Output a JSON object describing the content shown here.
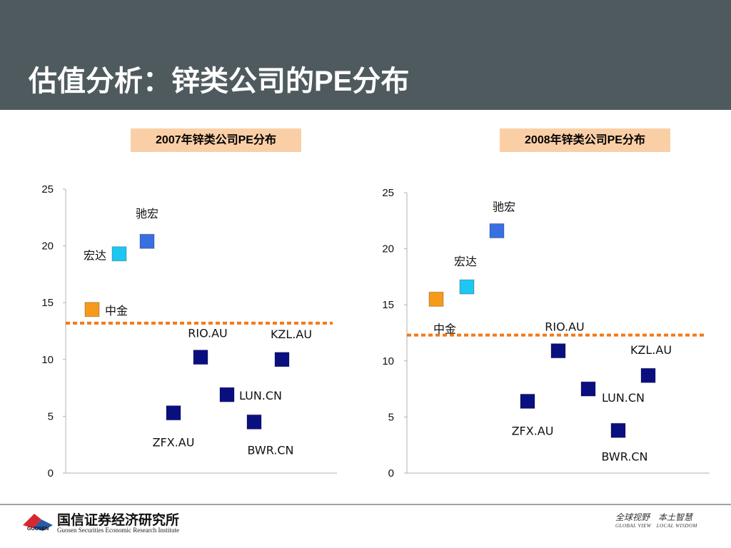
{
  "slide": {
    "title": "估值分析：锌类公司的PE分布"
  },
  "chart_data": [
    {
      "type": "scatter",
      "title": "2007年锌类公司PE分布",
      "xlabel": "",
      "ylabel": "",
      "ylim": [
        0,
        25
      ],
      "yticks": [
        0,
        5,
        10,
        15,
        20,
        25
      ],
      "reference_line": 13.2,
      "points": [
        {
          "label": "中金",
          "x": 1,
          "y": 14.4,
          "color": "#f59a1b"
        },
        {
          "label": "宏达",
          "x": 2,
          "y": 19.3,
          "color": "#1fc6f2"
        },
        {
          "label": "驰宏",
          "x": 3,
          "y": 20.4,
          "color": "#3a6fe0"
        },
        {
          "label": "ZFX.AU",
          "x": 4,
          "y": 5.3,
          "color": "#0a0f80"
        },
        {
          "label": "RIO.AU",
          "x": 5,
          "y": 10.2,
          "color": "#0a0f80"
        },
        {
          "label": "LUN.CN",
          "x": 6,
          "y": 6.9,
          "color": "#0a0f80"
        },
        {
          "label": "BWR.CN",
          "x": 7,
          "y": 4.5,
          "color": "#0a0f80"
        },
        {
          "label": "KZL.AU",
          "x": 8,
          "y": 10.0,
          "color": "#0a0f80"
        }
      ]
    },
    {
      "type": "scatter",
      "title": "2008年锌类公司PE分布",
      "xlabel": "",
      "ylabel": "",
      "ylim": [
        0,
        25
      ],
      "yticks": [
        0,
        5,
        10,
        15,
        20,
        25
      ],
      "reference_line": 12.3,
      "points": [
        {
          "label": "中金",
          "x": 1,
          "y": 15.5,
          "color": "#f59a1b"
        },
        {
          "label": "宏达",
          "x": 2,
          "y": 16.6,
          "color": "#1fc6f2"
        },
        {
          "label": "驰宏",
          "x": 3,
          "y": 21.6,
          "color": "#3a6fe0"
        },
        {
          "label": "ZFX.AU",
          "x": 4,
          "y": 6.4,
          "color": "#0a0f80"
        },
        {
          "label": "RIO.AU",
          "x": 5,
          "y": 10.9,
          "color": "#0a0f80"
        },
        {
          "label": "LUN.CN",
          "x": 6,
          "y": 7.5,
          "color": "#0a0f80"
        },
        {
          "label": "BWR.CN",
          "x": 7,
          "y": 3.8,
          "color": "#0a0f80"
        },
        {
          "label": "KZL.AU",
          "x": 8,
          "y": 8.7,
          "color": "#0a0f80"
        }
      ]
    }
  ],
  "footer": {
    "company_cn": "国信证券经济研究所",
    "company_en": "Guosen Securities Economic Research Institute",
    "logo_code": "GUOSEN",
    "slogan_cn": "全球视野　本土智慧",
    "slogan_en": "GLOBAL VIEW　LOCAL WISDOM"
  },
  "colors": {
    "header_bg": "#4f5a5f",
    "label_bg": "#fbcfa6",
    "reference_line": "#f07a1a",
    "axis": "#b0b0b0"
  }
}
